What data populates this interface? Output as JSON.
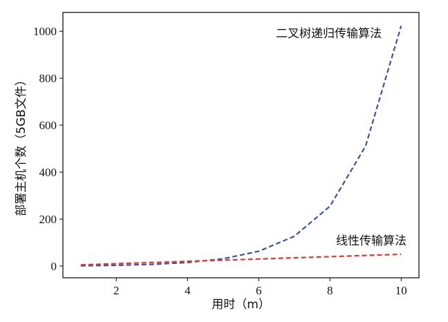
{
  "chart_data": {
    "type": "line",
    "xlabel": "用时（m）",
    "ylabel": "部署主机个数（5GB文件）",
    "xlim": [
      0.5,
      10.5
    ],
    "ylim": [
      -50,
      1080
    ],
    "xticks": [
      2,
      4,
      6,
      8,
      10
    ],
    "yticks": [
      0,
      200,
      400,
      600,
      800,
      1000
    ],
    "grid": false,
    "legend": "none",
    "series": [
      {
        "name": "二叉树递归传输算法",
        "color": "#3a52a3",
        "line_style": "dashed",
        "x": [
          1,
          2,
          3,
          4,
          5,
          6,
          7,
          8,
          9,
          10
        ],
        "y": [
          1,
          3,
          7,
          15,
          31,
          63,
          127,
          255,
          511,
          1023
        ]
      },
      {
        "name": "线性传输算法",
        "color": "#e3332b",
        "line_style": "dashed",
        "x": [
          1,
          2,
          3,
          4,
          5,
          6,
          7,
          8,
          9,
          10
        ],
        "y": [
          5,
          10,
          15,
          20,
          25,
          30,
          35,
          40,
          45,
          50
        ]
      }
    ]
  }
}
